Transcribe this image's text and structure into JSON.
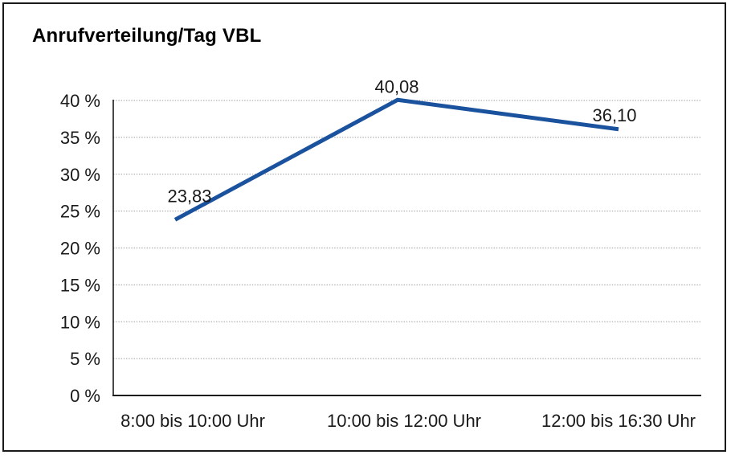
{
  "chart_data": {
    "type": "line",
    "title": "Anrufverteilung/Tag VBL",
    "categories": [
      "8:00 bis 10:00 Uhr",
      "10:00 bis 12:00 Uhr",
      "12:00 bis 16:30 Uhr"
    ],
    "values": [
      23.83,
      40.08,
      36.1
    ],
    "point_labels": [
      "23,83",
      "40,08",
      "36,10"
    ],
    "ylim": [
      0,
      40
    ],
    "yticks": [
      {
        "value": 0,
        "label": "0 %"
      },
      {
        "value": 5,
        "label": "5 %"
      },
      {
        "value": 10,
        "label": "10 %"
      },
      {
        "value": 15,
        "label": "15 %"
      },
      {
        "value": 20,
        "label": "20 %"
      },
      {
        "value": 25,
        "label": "25 %"
      },
      {
        "value": 30,
        "label": "30 %"
      },
      {
        "value": 35,
        "label": "35 %"
      },
      {
        "value": 40,
        "label": "40 %"
      }
    ],
    "xlabel": "",
    "ylabel": "",
    "legend": "none",
    "grid": "horizontal-dotted",
    "line_color": "#1A529E",
    "grid_color": "#999999",
    "axis_color": "#1a1a1a",
    "text_color": "#1a1a1a",
    "frame_border_color": "#1a1a1a",
    "background_color": "#ffffff"
  }
}
